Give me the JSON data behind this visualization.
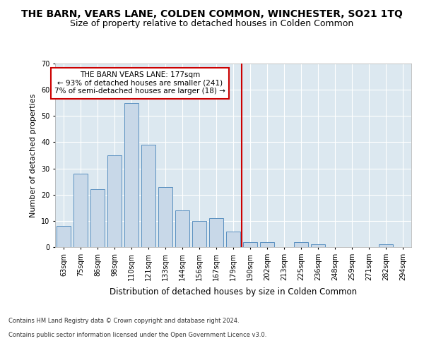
{
  "title": "THE BARN, VEARS LANE, COLDEN COMMON, WINCHESTER, SO21 1TQ",
  "subtitle": "Size of property relative to detached houses in Colden Common",
  "xlabel": "Distribution of detached houses by size in Colden Common",
  "ylabel": "Number of detached properties",
  "footer1": "Contains HM Land Registry data © Crown copyright and database right 2024.",
  "footer2": "Contains public sector information licensed under the Open Government Licence v3.0.",
  "bar_labels": [
    "63sqm",
    "75sqm",
    "86sqm",
    "98sqm",
    "110sqm",
    "121sqm",
    "133sqm",
    "144sqm",
    "156sqm",
    "167sqm",
    "179sqm",
    "190sqm",
    "202sqm",
    "213sqm",
    "225sqm",
    "236sqm",
    "248sqm",
    "259sqm",
    "271sqm",
    "282sqm",
    "294sqm"
  ],
  "bar_values": [
    8,
    28,
    22,
    35,
    55,
    39,
    23,
    14,
    10,
    11,
    6,
    2,
    2,
    0,
    2,
    1,
    0,
    0,
    0,
    1,
    0
  ],
  "bar_color": "#c8d8e8",
  "bar_edge_color": "#5a90c0",
  "annotation_label": "THE BARN VEARS LANE: 177sqm",
  "annotation_line1": "← 93% of detached houses are smaller (241)",
  "annotation_line2": "7% of semi-detached houses are larger (18) →",
  "vline_x_index": 10.5,
  "vline_color": "#cc0000",
  "annotation_box_color": "#ffffff",
  "annotation_box_edge": "#cc0000",
  "ylim": [
    0,
    70
  ],
  "yticks": [
    0,
    10,
    20,
    30,
    40,
    50,
    60,
    70
  ],
  "fig_bg_color": "#ffffff",
  "axes_bg_color": "#dce8f0",
  "title_fontsize": 10,
  "subtitle_fontsize": 9,
  "tick_fontsize": 7,
  "ylabel_fontsize": 8,
  "xlabel_fontsize": 8.5,
  "footer_fontsize": 6,
  "annotation_fontsize": 7.5
}
